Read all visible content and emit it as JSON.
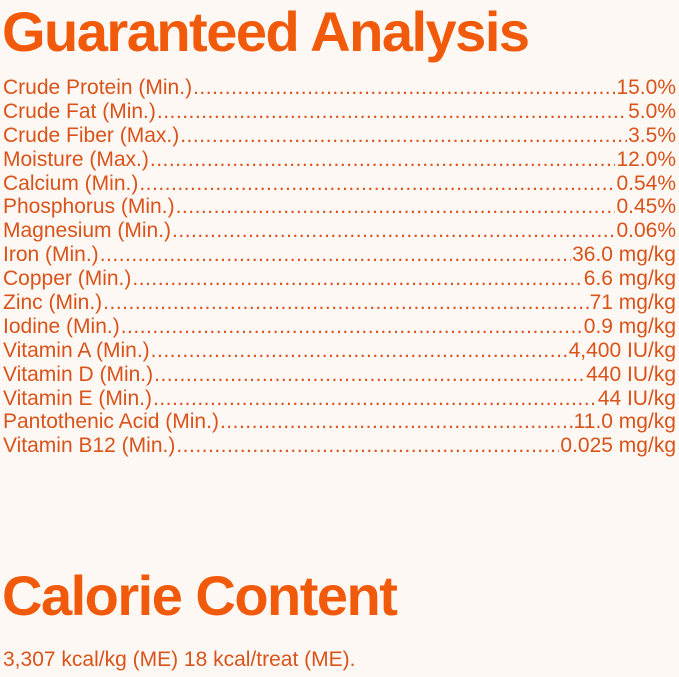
{
  "guaranteed_analysis": {
    "title": "Guaranteed Analysis",
    "rows": [
      {
        "label": "Crude Protein (Min.)",
        "value": "15.0%"
      },
      {
        "label": "Crude Fat (Min.)",
        "value": "5.0%"
      },
      {
        "label": "Crude Fiber (Max.)",
        "value": "3.5%"
      },
      {
        "label": "Moisture (Max.)",
        "value": "12.0%"
      },
      {
        "label": "Calcium (Min.)",
        "value": "0.54%"
      },
      {
        "label": "Phosphorus (Min.)",
        "value": "0.45%"
      },
      {
        "label": "Magnesium (Min.)",
        "value": "0.06%"
      },
      {
        "label": "Iron (Min.)",
        "value": "36.0 mg/kg"
      },
      {
        "label": "Copper (Min.)",
        "value": "6.6 mg/kg"
      },
      {
        "label": "Zinc (Min.)",
        "value": "71 mg/kg"
      },
      {
        "label": "Iodine (Min.)",
        "value": "0.9 mg/kg"
      },
      {
        "label": "Vitamin A (Min.)",
        "value": "4,400 IU/kg"
      },
      {
        "label": "Vitamin D (Min.)",
        "value": "440 IU/kg"
      },
      {
        "label": "Vitamin E (Min.)",
        "value": "44 IU/kg"
      },
      {
        "label": "Pantothenic Acid (Min.)",
        "value": "11.0 mg/kg"
      },
      {
        "label": "Vitamin B12 (Min.)",
        "value": "0.025 mg/kg"
      }
    ]
  },
  "calorie_content": {
    "title": "Calorie Content",
    "text": "3,307 kcal/kg (ME) 18 kcal/treat (ME)."
  },
  "colors": {
    "heading": "#f05a0a",
    "text": "#d9531a",
    "background": "#fdf8f4"
  }
}
